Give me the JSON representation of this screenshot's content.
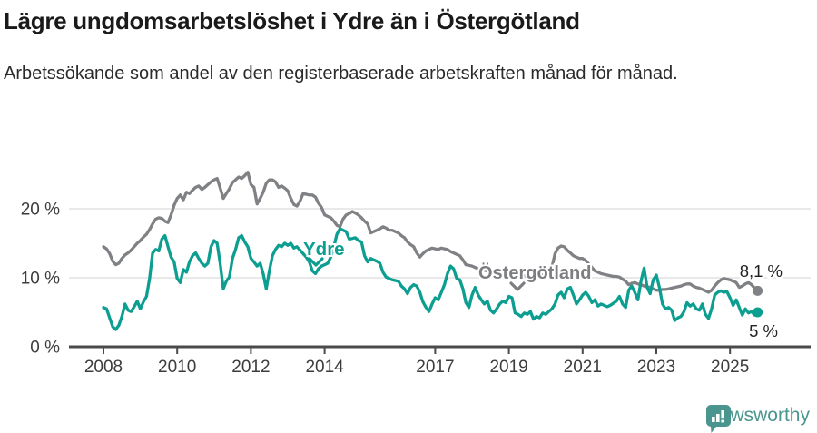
{
  "header": {
    "title": "Lägre ungdomsarbetslöshet i Ydre än i Östergötland",
    "subtitle": "Arbetssökande som andel av den registerbaserade arbetskraften månad för månad."
  },
  "footer": {
    "brand": "Newsworthy"
  },
  "colors": {
    "ydre": "#0c9e90",
    "ostergotland": "#7f8184",
    "ostergotland_label": "#7d7e81",
    "gridline": "#dcdcdc",
    "axis": "#4a4a4a"
  },
  "chart_data": {
    "type": "line",
    "title": "Lägre ungdomsarbetslöshet i Ydre än i Östergötland",
    "subtitle": "Arbetssökande som andel av den registerbaserade arbetskraften månad för månad.",
    "unit": "%",
    "x_start": 2008.0,
    "x_step": 0.083333,
    "x_end": 2025.75,
    "xlim": [
      2007.4,
      2026.2
    ],
    "ylim": [
      0,
      27
    ],
    "grid": "horizontal",
    "x_tick_years": [
      2008,
      2010,
      2012,
      2014,
      2017,
      2019,
      2021,
      2023,
      2025
    ],
    "y_ticks": [
      {
        "value": 0,
        "label": "0 %"
      },
      {
        "value": 10,
        "label": "10 %"
      },
      {
        "value": 20,
        "label": "20 %"
      }
    ],
    "series": [
      {
        "name": "Ydre",
        "color": "#0c9e90",
        "end_label": "5 %",
        "last_value": 5.0,
        "values": [
          5.7,
          5.5,
          4.2,
          2.9,
          2.5,
          3.1,
          4.4,
          6.2,
          5.3,
          5.1,
          5.8,
          6.6,
          5.5,
          6.5,
          7.3,
          9.9,
          13.6,
          14.1,
          13.9,
          15.6,
          16.1,
          14.5,
          13.0,
          12.3,
          9.9,
          9.3,
          11.2,
          10.8,
          12.3,
          13.2,
          13.6,
          12.8,
          12.1,
          11.7,
          12.1,
          14.5,
          15.4,
          15.0,
          12.0,
          8.4,
          9.5,
          10.1,
          12.8,
          14.1,
          15.8,
          16.1,
          15.2,
          14.5,
          12.8,
          12.3,
          11.7,
          12.1,
          10.6,
          8.4,
          11.0,
          13.2,
          14.1,
          14.7,
          14.5,
          15.0,
          14.7,
          15.0,
          14.3,
          14.5,
          14.0,
          13.5,
          13.0,
          12.3,
          11.0,
          10.6,
          11.3,
          11.7,
          11.9,
          12.1,
          13.0,
          14.5,
          16.3,
          17.1,
          16.9,
          16.7,
          15.6,
          15.7,
          15.8,
          15.4,
          15.2,
          13.2,
          12.3,
          12.8,
          12.6,
          12.4,
          12.1,
          10.8,
          10.1,
          9.9,
          9.7,
          9.6,
          9.5,
          8.8,
          8.4,
          7.7,
          8.6,
          9.0,
          8.8,
          7.9,
          6.5,
          5.7,
          5.1,
          6.2,
          7.1,
          6.8,
          7.9,
          9.0,
          10.6,
          11.7,
          11.3,
          9.9,
          9.7,
          8.4,
          6.4,
          5.7,
          7.5,
          8.6,
          7.5,
          6.8,
          6.2,
          6.6,
          5.3,
          4.9,
          5.5,
          6.2,
          6.6,
          6.4,
          7.3,
          7.1,
          4.9,
          4.7,
          4.4,
          4.9,
          4.7,
          5.1,
          4.0,
          4.4,
          4.2,
          4.9,
          4.7,
          5.1,
          5.5,
          6.2,
          7.5,
          7.9,
          7.1,
          8.4,
          8.6,
          7.5,
          6.2,
          6.8,
          7.5,
          7.9,
          7.3,
          6.4,
          6.8,
          5.9,
          6.2,
          6.0,
          5.8,
          6.0,
          6.3,
          6.6,
          7.3,
          6.2,
          5.7,
          8.2,
          8.8,
          7.9,
          6.8,
          9.5,
          11.4,
          8.6,
          7.7,
          9.7,
          10.4,
          8.6,
          6.2,
          5.5,
          5.7,
          5.3,
          3.8,
          4.2,
          4.4,
          5.1,
          6.4,
          5.9,
          6.2,
          5.5,
          5.3,
          6.2,
          4.7,
          4.1,
          5.5,
          7.5,
          7.9,
          8.1,
          7.9,
          8.0,
          7.1,
          6.0,
          6.8,
          5.7,
          4.6,
          5.5,
          4.9,
          5.1,
          4.6,
          5.0
        ]
      },
      {
        "name": "Östergötland",
        "color": "#7f8184",
        "end_label": "8,1 %",
        "last_value": 8.1,
        "values": [
          14.5,
          14.2,
          13.5,
          12.4,
          11.9,
          12.1,
          12.8,
          13.3,
          13.6,
          14.0,
          14.5,
          15.0,
          15.4,
          15.9,
          16.3,
          17.0,
          17.8,
          18.5,
          18.7,
          18.6,
          18.2,
          18.0,
          19.1,
          20.5,
          21.5,
          22.0,
          21.3,
          22.4,
          22.2,
          22.7,
          23.1,
          23.3,
          22.8,
          23.1,
          23.5,
          23.9,
          24.2,
          24.4,
          23.0,
          21.5,
          22.2,
          22.9,
          23.8,
          24.2,
          24.6,
          24.4,
          24.8,
          25.3,
          23.5,
          23.1,
          20.7,
          21.5,
          22.4,
          23.7,
          24.2,
          24.2,
          23.9,
          23.1,
          23.3,
          23.0,
          22.6,
          21.5,
          20.6,
          20.4,
          21.1,
          22.2,
          22.1,
          22.0,
          22.0,
          21.7,
          20.8,
          20.2,
          19.1,
          18.9,
          18.7,
          18.2,
          17.6,
          17.4,
          18.5,
          19.1,
          19.3,
          19.6,
          19.4,
          19.1,
          18.7,
          18.2,
          17.8,
          16.5,
          16.7,
          16.9,
          17.1,
          17.4,
          17.2,
          16.9,
          16.9,
          16.7,
          16.5,
          16.1,
          15.8,
          15.2,
          14.8,
          14.5,
          13.6,
          13.0,
          13.5,
          13.9,
          14.1,
          14.3,
          14.2,
          14.1,
          14.3,
          14.2,
          14.1,
          13.8,
          13.6,
          13.4,
          13.2,
          12.6,
          11.9,
          11.8,
          11.7,
          11.5,
          11.3,
          11.2,
          11.1,
          11.0,
          11.0,
          10.9,
          10.9,
          10.8,
          10.8,
          10.8,
          10.7,
          10.6,
          10.5,
          10.4,
          10.4,
          10.3,
          10.3,
          10.2,
          10.2,
          10.3,
          10.3,
          10.4,
          10.5,
          10.8,
          11.5,
          13.5,
          14.3,
          14.6,
          14.5,
          14.0,
          13.6,
          13.2,
          13.0,
          12.8,
          12.8,
          12.5,
          12.0,
          11.5,
          11.0,
          10.8,
          10.6,
          10.5,
          10.4,
          10.3,
          10.2,
          10.2,
          10.1,
          9.8,
          9.5,
          9.0,
          9.2,
          9.3,
          9.1,
          9.0,
          8.8,
          8.7,
          8.6,
          8.4,
          8.2,
          8.2,
          8.3,
          8.3,
          8.4,
          8.5,
          8.6,
          8.7,
          8.8,
          9.0,
          9.1,
          9.1,
          8.8,
          8.6,
          8.5,
          8.3,
          8.1,
          7.9,
          8.2,
          8.8,
          9.3,
          9.7,
          9.9,
          9.8,
          9.7,
          9.5,
          9.3,
          8.6,
          8.8,
          9.1,
          9.3,
          9.0,
          8.5,
          8.1
        ]
      }
    ]
  }
}
